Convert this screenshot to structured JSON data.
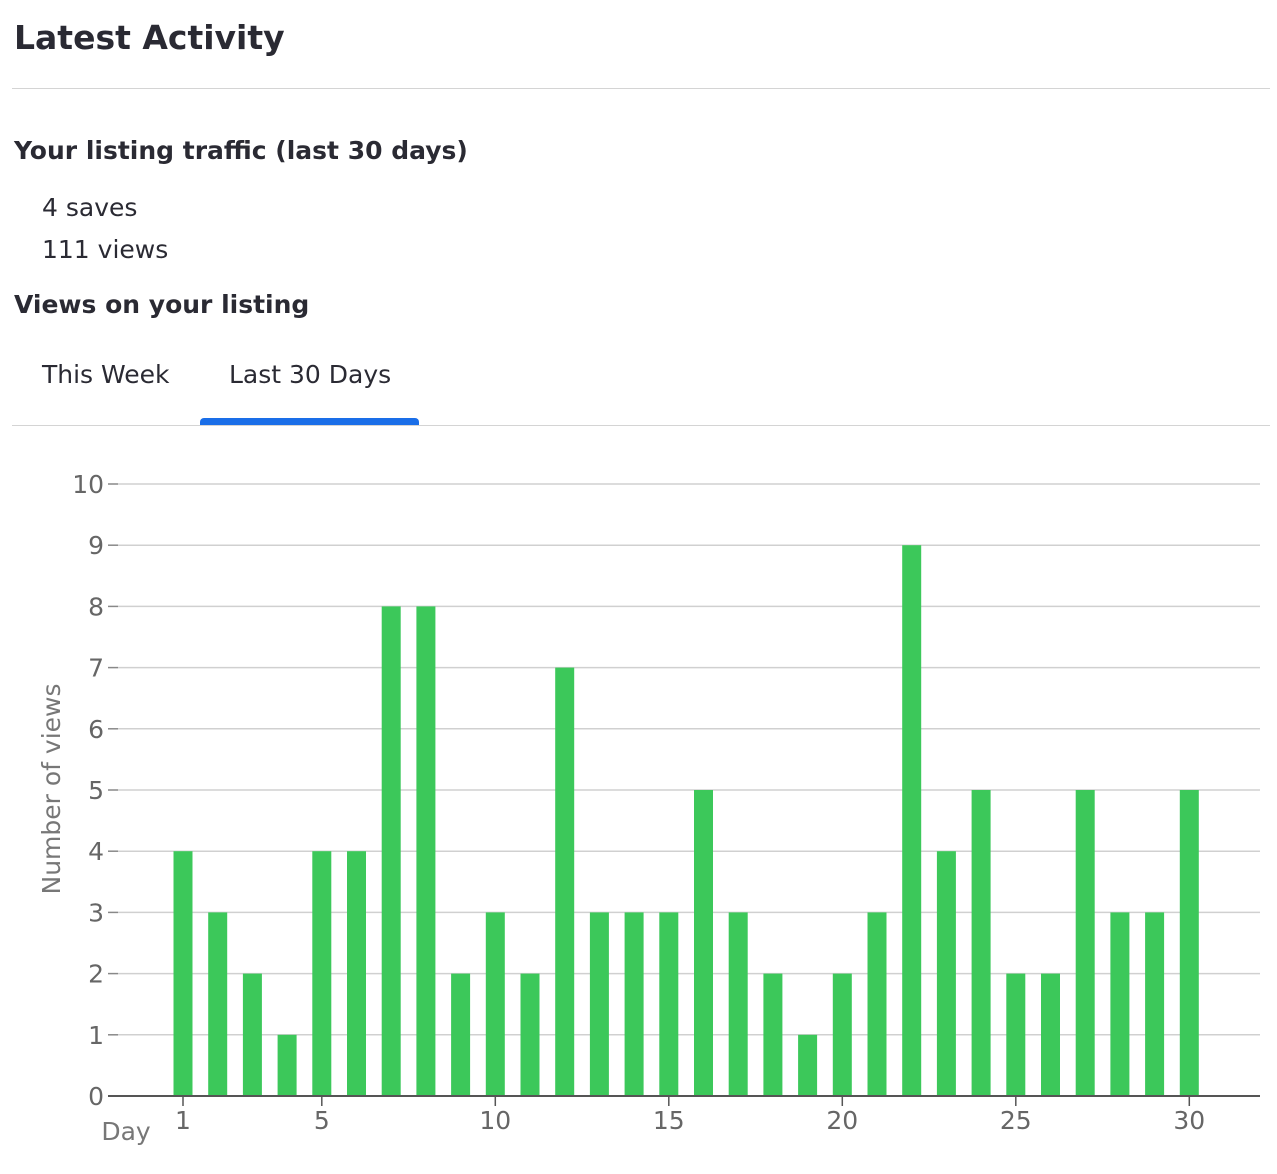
{
  "header": {
    "title": "Latest Activity"
  },
  "traffic": {
    "heading": "Your listing traffic (last 30 days)",
    "saves": "4 saves",
    "views": "111 views"
  },
  "views_section": {
    "heading": "Views on your listing",
    "tabs": [
      {
        "label": "This Week",
        "active": false
      },
      {
        "label": "Last 30 Days",
        "active": true
      }
    ],
    "accent_color": "#1a6ee8"
  },
  "chart_data": {
    "type": "bar",
    "x": [
      1,
      2,
      3,
      4,
      5,
      6,
      7,
      8,
      9,
      10,
      11,
      12,
      13,
      14,
      15,
      16,
      17,
      18,
      19,
      20,
      21,
      22,
      23,
      24,
      25,
      26,
      27,
      28,
      29,
      30
    ],
    "values": [
      4,
      3,
      2,
      1,
      4,
      4,
      8,
      8,
      2,
      3,
      2,
      7,
      3,
      3,
      3,
      5,
      3,
      2,
      1,
      2,
      3,
      9,
      4,
      5,
      2,
      2,
      5,
      3,
      3,
      5
    ],
    "xlabel": "Day",
    "ylabel": "Number of views",
    "xticks": [
      1,
      5,
      10,
      15,
      20,
      25,
      30
    ],
    "yticks": [
      0,
      1,
      2,
      3,
      4,
      5,
      6,
      7,
      8,
      9,
      10
    ],
    "ylim": [
      0,
      10
    ],
    "grid": true,
    "bar_color": "#3cc85a"
  }
}
